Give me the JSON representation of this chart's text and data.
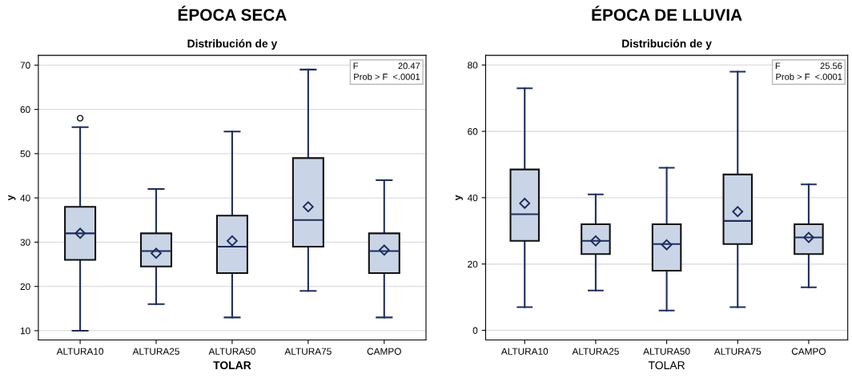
{
  "chart_data": [
    {
      "type": "box",
      "title": "ÉPOCA SECA",
      "subtitle": "Distribución de y",
      "xlabel": "TOLAR",
      "ylabel": "y",
      "categories": [
        "ALTURA10",
        "ALTURA25",
        "ALTURA50",
        "ALTURA75",
        "CAMPO"
      ],
      "boxes": [
        {
          "low": 10,
          "q1": 26,
          "median": 32,
          "q3": 38,
          "high": 56,
          "mean": 32,
          "outliers": [
            58
          ]
        },
        {
          "low": 16,
          "q1": 24.5,
          "median": 28,
          "q3": 32,
          "high": 42,
          "mean": 27.5
        },
        {
          "low": 13,
          "q1": 23,
          "median": 29,
          "q3": 36,
          "high": 55,
          "mean": 30.3
        },
        {
          "low": 19,
          "q1": 29,
          "median": 35,
          "q3": 49,
          "high": 69,
          "mean": 38
        },
        {
          "low": 13,
          "q1": 23,
          "median": 28,
          "q3": 32,
          "high": 44,
          "mean": 28.2
        }
      ],
      "color": "#c9d5e6",
      "ylim": [
        7.9,
        72.2
      ],
      "yticks": [
        10,
        20,
        30,
        40,
        50,
        60,
        70
      ],
      "grid": "y",
      "annotations": [
        "F                20.47",
        "Prob > F  <.0001"
      ]
    },
    {
      "type": "box",
      "title": "ÉPOCA DE LLUVIA",
      "subtitle": "Distribución de y",
      "xlabel": "TOLAR",
      "ylabel": "y",
      "categories": [
        "ALTURA10",
        "ALTURA25",
        "ALTURA50",
        "ALTURA75",
        "CAMPO"
      ],
      "boxes": [
        {
          "low": 7,
          "q1": 27,
          "median": 35,
          "q3": 48.5,
          "high": 73,
          "mean": 38.3
        },
        {
          "low": 12,
          "q1": 23,
          "median": 27,
          "q3": 32,
          "high": 41,
          "mean": 27
        },
        {
          "low": 6,
          "q1": 18,
          "median": 26,
          "q3": 32,
          "high": 49,
          "mean": 25.8
        },
        {
          "low": 7,
          "q1": 26,
          "median": 33,
          "q3": 47,
          "high": 78,
          "mean": 35.8
        },
        {
          "low": 13,
          "q1": 23,
          "median": 28,
          "q3": 32,
          "high": 44,
          "mean": 28
        }
      ],
      "color": "#c9d5e6",
      "ylim": [
        -2.9,
        82.9
      ],
      "yticks": [
        0,
        20,
        40,
        60,
        80
      ],
      "grid": "y",
      "annotations": [
        "F                25.56",
        "Prob > F  <.0001"
      ]
    }
  ]
}
